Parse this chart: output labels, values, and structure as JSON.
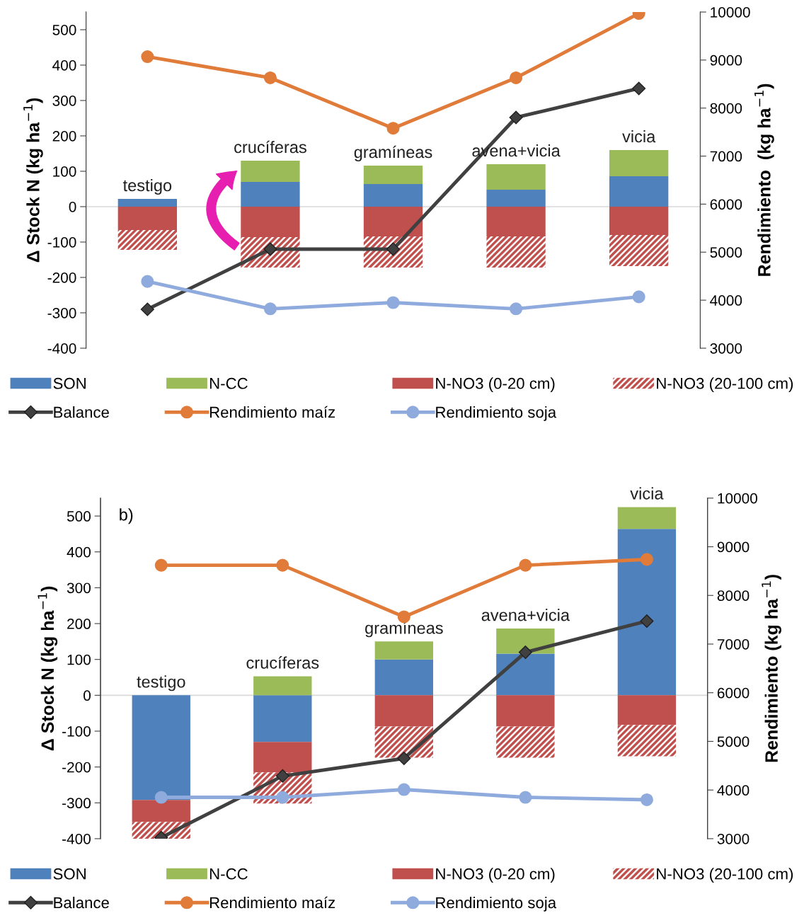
{
  "chart_data": [
    {
      "type": "bar",
      "stacked": true,
      "categories": [
        "testigo",
        "crucíferas",
        "gramíneas",
        "avena+vicia",
        "vicia"
      ],
      "ylabel": "Δ Stock N (kg ha$^{−1}$)",
      "y2label": "Rendimiento  (kg ha$^{−1}$)",
      "ylim": [
        -400,
        550
      ],
      "yticks": [
        -400,
        -300,
        -200,
        -100,
        0,
        100,
        200,
        300,
        400,
        500
      ],
      "y2lim": [
        3000,
        10000
      ],
      "y2ticks": [
        3000,
        4000,
        5000,
        6000,
        7000,
        8000,
        9000,
        10000
      ],
      "grid": false,
      "legend": "bottom",
      "ref_lines": [
        {
          "axis": "y",
          "value": 0,
          "color": "#d9d9d9"
        }
      ],
      "series": [
        {
          "name": "SON",
          "color": "#4f81bd",
          "values": [
            22,
            70,
            64,
            48,
            86
          ]
        },
        {
          "name": "N-CC",
          "color": "#9bbb59",
          "values": [
            0,
            60,
            52,
            72,
            74
          ]
        },
        {
          "name": "N-NO3 (0-20 cm)",
          "color": "#c0504d",
          "values": [
            -66,
            -86,
            -84,
            -84,
            -80
          ]
        },
        {
          "name": "N-NO3 (20-100 cm)",
          "color": "#c0504d",
          "values": [
            -56,
            -86,
            -88,
            -88,
            -88
          ]
        },
        {
          "name": "Balance",
          "type": "line",
          "color": "#404040",
          "marker": "diamond",
          "values": [
            -290,
            -120,
            -120,
            252,
            334
          ]
        },
        {
          "name": "Rendimiento maíz",
          "type": "line",
          "axis": "y2",
          "color": "#e07b39",
          "marker": "circle",
          "values": [
            9070,
            8630,
            7580,
            8630,
            9970
          ]
        },
        {
          "name": "Rendimiento soja",
          "type": "line",
          "axis": "y2",
          "color": "#8faadc",
          "marker": "circle",
          "values": [
            4390,
            3820,
            3950,
            3820,
            4070
          ]
        }
      ]
    },
    {
      "type": "bar",
      "stacked": true,
      "categories": [
        "testigo",
        "crucíferas",
        "gramíneas",
        "avena+vicia",
        "vicia"
      ],
      "ylabel": "Δ Stock N (kg ha$^{−1}$)",
      "y2label": "Rendimiento (kg ha$^{−1}$)",
      "ylim": [
        -400,
        550
      ],
      "yticks": [
        -400,
        -300,
        -200,
        -100,
        0,
        100,
        200,
        300,
        400,
        500
      ],
      "y2lim": [
        3000,
        10000
      ],
      "y2ticks": [
        3000,
        4000,
        5000,
        6000,
        7000,
        8000,
        9000,
        10000
      ],
      "grid": false,
      "legend": "bottom",
      "annotations": [
        "b)"
      ],
      "ref_lines": [
        {
          "axis": "y",
          "value": 0,
          "color": "#d9d9d9"
        }
      ],
      "series": [
        {
          "name": "SON",
          "color": "#4f81bd",
          "values": [
            -292,
            -130,
            100,
            116,
            464
          ]
        },
        {
          "name": "N-CC",
          "color": "#9bbb59",
          "values": [
            0,
            53,
            50,
            70,
            61
          ]
        },
        {
          "name": "N-NO3 (0-20 cm)",
          "color": "#c0504d",
          "values": [
            -61,
            -85,
            -87,
            -87,
            -83
          ]
        },
        {
          "name": "N-NO3 (20-100 cm)",
          "color": "#c0504d",
          "values": [
            -47,
            -87,
            -87,
            -87,
            -87
          ]
        },
        {
          "name": "Balance",
          "type": "line",
          "color": "#404040",
          "marker": "diamond",
          "values": [
            -397,
            -225,
            -176,
            120,
            207
          ]
        },
        {
          "name": "Rendimiento maíz",
          "type": "line",
          "axis": "y2",
          "color": "#e07b39",
          "marker": "circle",
          "values": [
            8620,
            8620,
            7560,
            8620,
            8740
          ]
        },
        {
          "name": "Rendimiento soja",
          "type": "line",
          "axis": "y2",
          "color": "#8faadc",
          "marker": "circle",
          "values": [
            3850,
            3850,
            4010,
            3850,
            3800
          ]
        }
      ]
    }
  ]
}
